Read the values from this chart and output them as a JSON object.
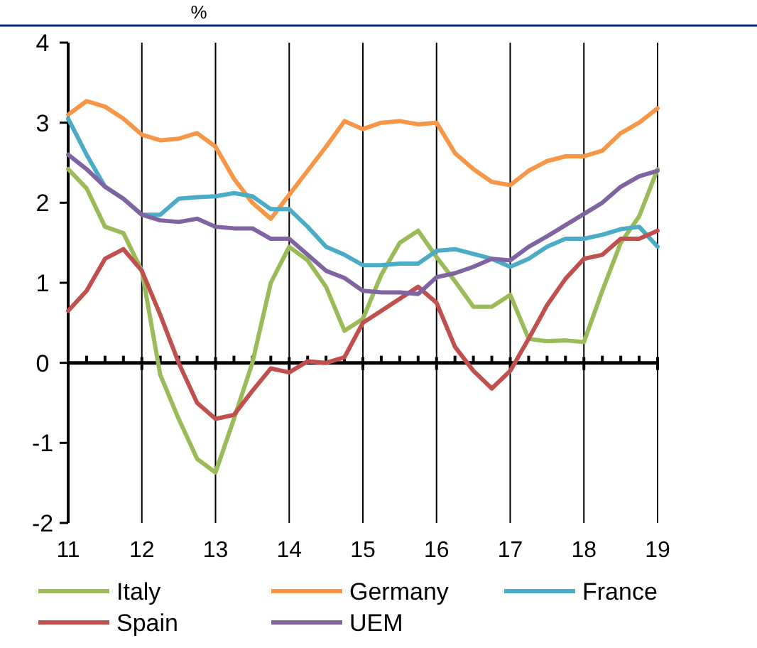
{
  "chart_data": {
    "type": "line",
    "ylabel": "%",
    "x": [
      11,
      11.25,
      11.5,
      11.75,
      12,
      12.25,
      12.5,
      12.75,
      13,
      13.25,
      13.5,
      13.75,
      14,
      14.25,
      14.5,
      14.75,
      15,
      15.25,
      15.5,
      15.75,
      16,
      16.25,
      16.5,
      16.75,
      17,
      17.25,
      17.5,
      17.75,
      18,
      18.25,
      18.5,
      18.75,
      19
    ],
    "series": [
      {
        "name": "Italy",
        "color": "#9bbb59",
        "values": [
          2.42,
          2.18,
          1.7,
          1.62,
          1.15,
          -0.15,
          -0.7,
          -1.2,
          -1.37,
          -0.7,
          0.0,
          1.0,
          1.45,
          1.28,
          0.95,
          0.4,
          0.55,
          1.1,
          1.5,
          1.65,
          1.32,
          1.02,
          0.7,
          0.7,
          0.85,
          0.3,
          0.27,
          0.28,
          0.26,
          0.9,
          1.5,
          1.83,
          2.42
        ]
      },
      {
        "name": "Germany",
        "color": "#f79646",
        "values": [
          3.1,
          3.27,
          3.2,
          3.05,
          2.85,
          2.78,
          2.8,
          2.87,
          2.7,
          2.3,
          2.0,
          1.8,
          2.1,
          2.4,
          2.7,
          3.02,
          2.92,
          3.0,
          3.02,
          2.98,
          3.0,
          2.62,
          2.42,
          2.26,
          2.22,
          2.4,
          2.52,
          2.58,
          2.58,
          2.65,
          2.87,
          3.0,
          3.18
        ]
      },
      {
        "name": "France",
        "color": "#4bacc6",
        "values": [
          3.05,
          2.6,
          2.2,
          2.05,
          1.85,
          1.85,
          2.05,
          2.07,
          2.08,
          2.12,
          2.08,
          1.92,
          1.92,
          1.7,
          1.45,
          1.35,
          1.22,
          1.22,
          1.24,
          1.24,
          1.4,
          1.42,
          1.36,
          1.3,
          1.2,
          1.3,
          1.45,
          1.55,
          1.55,
          1.6,
          1.67,
          1.7,
          1.45
        ]
      },
      {
        "name": "Spain",
        "color": "#c0504d",
        "values": [
          0.65,
          0.9,
          1.3,
          1.42,
          1.15,
          0.6,
          0.0,
          -0.5,
          -0.7,
          -0.65,
          -0.35,
          -0.07,
          -0.12,
          0.02,
          0.0,
          0.07,
          0.5,
          0.65,
          0.8,
          0.95,
          0.75,
          0.2,
          -0.1,
          -0.32,
          -0.1,
          0.3,
          0.72,
          1.05,
          1.3,
          1.35,
          1.55,
          1.55,
          1.65
        ]
      },
      {
        "name": "UEM",
        "color": "#8064a2",
        "values": [
          2.6,
          2.42,
          2.2,
          2.05,
          1.85,
          1.78,
          1.76,
          1.8,
          1.7,
          1.68,
          1.68,
          1.55,
          1.55,
          1.35,
          1.15,
          1.06,
          0.9,
          0.88,
          0.88,
          0.86,
          1.07,
          1.12,
          1.2,
          1.3,
          1.28,
          1.45,
          1.58,
          1.72,
          1.86,
          2.0,
          2.2,
          2.33,
          2.4
        ]
      }
    ],
    "xlim": [
      11,
      19
    ],
    "xticks": [
      11,
      12,
      13,
      14,
      15,
      16,
      17,
      18,
      19
    ],
    "ylim": [
      -2,
      4
    ],
    "yticks": [
      -2,
      -1,
      0,
      1,
      2,
      3,
      4
    ],
    "grid": "x",
    "legend": "bottom",
    "marker": "none",
    "line_style": "solid"
  }
}
